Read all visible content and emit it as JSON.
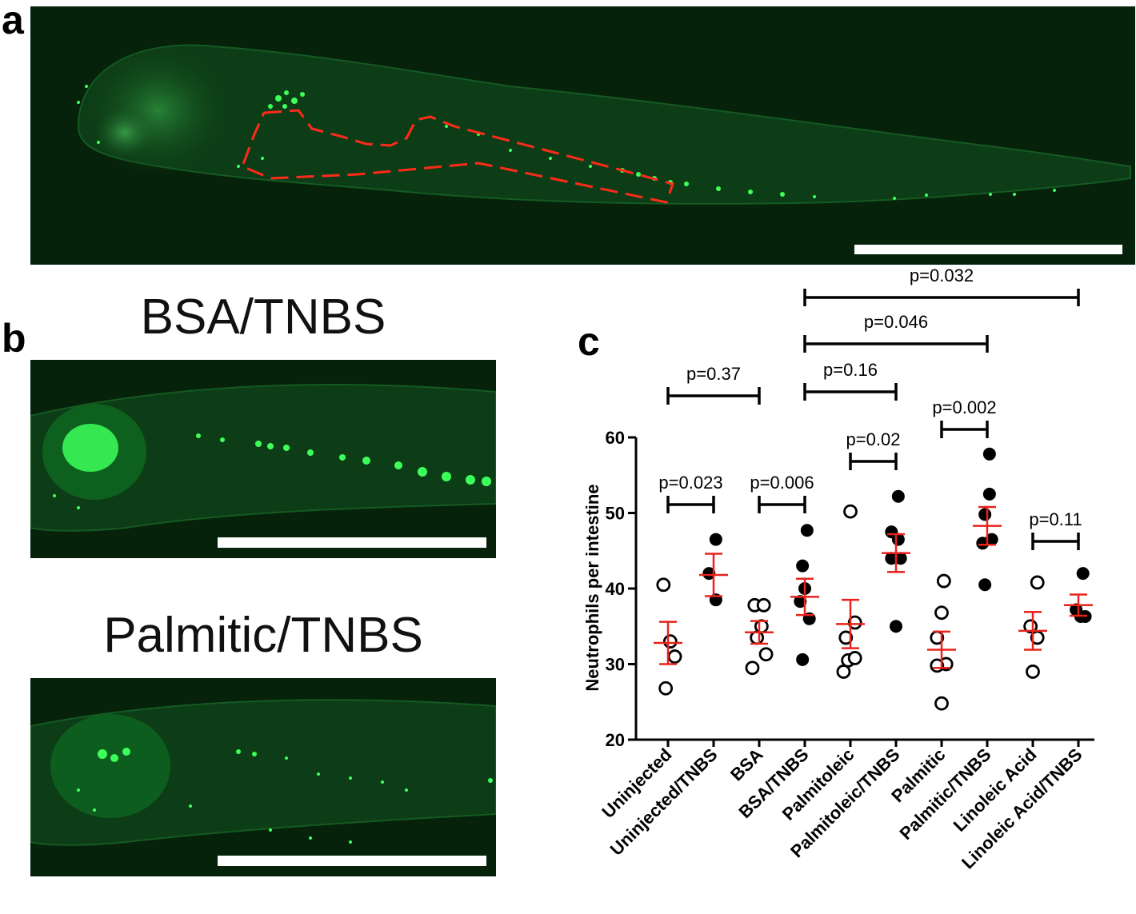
{
  "panel_labels": {
    "a": "a",
    "b": "b",
    "c": "c"
  },
  "panel_b": {
    "top_caption": "BSA/TNBS",
    "bottom_caption": "Palmitic/TNBS"
  },
  "colors": {
    "fluorescence": "#3cff5a",
    "background": "#06220a",
    "outline": "#ff2a1a",
    "scale_bar": "#ffffff",
    "mean_sem": "#e8231b"
  },
  "chart_data": {
    "type": "scatter",
    "ylabel": "Neutrophils per intestine",
    "xlabel": "",
    "ylim": [
      20,
      60
    ],
    "yticks": [
      20,
      30,
      40,
      50,
      60
    ],
    "categories": [
      "Uninjected",
      "Uninjected/TNBS",
      "BSA",
      "BSA/TNBS",
      "Palmitoleic",
      "Palmitoleic/TNBS",
      "Palmitic",
      "Palmitic/TNBS",
      "Linoleic Acid",
      "Linoleic Acid/TNBS"
    ],
    "groups": [
      {
        "category": "Uninjected",
        "marker": "open",
        "points": [
          [
            -0.1,
            40.5
          ],
          [
            0.05,
            33.0
          ],
          [
            0.15,
            31.0
          ],
          [
            -0.05,
            26.8
          ]
        ],
        "mean": 32.8,
        "sem": 2.8
      },
      {
        "category": "Uninjected/TNBS",
        "marker": "filled",
        "points": [
          [
            0.05,
            46.5
          ],
          [
            -0.1,
            42.0
          ],
          [
            0.05,
            38.5
          ]
        ],
        "mean": 41.8,
        "sem": 2.8
      },
      {
        "category": "BSA",
        "marker": "open",
        "points": [
          [
            -0.1,
            37.8
          ],
          [
            0.1,
            37.8
          ],
          [
            0.05,
            35.0
          ],
          [
            -0.05,
            33.5
          ],
          [
            -0.15,
            29.5
          ],
          [
            0.15,
            31.3
          ]
        ],
        "mean": 34.2,
        "sem": 1.5
      },
      {
        "category": "BSA/TNBS",
        "marker": "filled",
        "points": [
          [
            0.05,
            47.7
          ],
          [
            -0.05,
            43.0
          ],
          [
            0.0,
            40.0
          ],
          [
            -0.1,
            38.3
          ],
          [
            0.1,
            36.0
          ],
          [
            -0.05,
            30.6
          ]
        ],
        "mean": 38.9,
        "sem": 2.4
      },
      {
        "category": "Palmitoleic",
        "marker": "open",
        "points": [
          [
            0.0,
            50.2
          ],
          [
            0.1,
            35.5
          ],
          [
            -0.1,
            33.5
          ],
          [
            -0.05,
            30.5
          ],
          [
            0.1,
            30.8
          ],
          [
            -0.15,
            29.0
          ]
        ],
        "mean": 35.3,
        "sem": 3.2
      },
      {
        "category": "Palmitoleic/TNBS",
        "marker": "filled",
        "points": [
          [
            0.05,
            52.2
          ],
          [
            -0.1,
            47.5
          ],
          [
            0.05,
            46.5
          ],
          [
            -0.1,
            44.0
          ],
          [
            0.1,
            44.0
          ],
          [
            0.0,
            35.0
          ]
        ],
        "mean": 44.7,
        "sem": 2.5
      },
      {
        "category": "Palmitic",
        "marker": "open",
        "points": [
          [
            0.05,
            41.0
          ],
          [
            0.0,
            36.8
          ],
          [
            -0.1,
            33.5
          ],
          [
            0.1,
            30.0
          ],
          [
            -0.1,
            29.8
          ],
          [
            0.0,
            24.8
          ]
        ],
        "mean": 31.9,
        "sem": 2.4
      },
      {
        "category": "Palmitic/TNBS",
        "marker": "filled",
        "points": [
          [
            0.05,
            57.8
          ],
          [
            0.05,
            52.5
          ],
          [
            -0.05,
            49.8
          ],
          [
            -0.1,
            46.0
          ],
          [
            0.1,
            46.5
          ],
          [
            -0.05,
            40.5
          ]
        ],
        "mean": 48.3,
        "sem": 2.5
      },
      {
        "category": "Linoleic Acid",
        "marker": "open",
        "points": [
          [
            0.1,
            40.8
          ],
          [
            -0.05,
            35.0
          ],
          [
            0.1,
            33.5
          ],
          [
            0.0,
            29.0
          ]
        ],
        "mean": 34.4,
        "sem": 2.5
      },
      {
        "category": "Linoleic Acid/TNBS",
        "marker": "filled",
        "points": [
          [
            0.1,
            42.0
          ],
          [
            -0.05,
            37.2
          ],
          [
            0.05,
            36.3
          ],
          [
            0.15,
            36.3
          ]
        ],
        "mean": 37.8,
        "sem": 1.4
      }
    ],
    "comparisons": [
      {
        "from": 0,
        "to": 1,
        "label": "p=0.023"
      },
      {
        "from": 2,
        "to": 3,
        "label": "p=0.006"
      },
      {
        "from": 4,
        "to": 5,
        "label": "p=0.02"
      },
      {
        "from": 6,
        "to": 7,
        "label": "p=0.002"
      },
      {
        "from": 8,
        "to": 9,
        "label": "p=0.11"
      },
      {
        "from": 0,
        "to": 2,
        "label": "p=0.37"
      },
      {
        "from": 3,
        "to": 5,
        "label": "p=0.16"
      },
      {
        "from": 3,
        "to": 7,
        "label": "p=0.046"
      },
      {
        "from": 3,
        "to": 9,
        "label": "p=0.032"
      }
    ]
  }
}
